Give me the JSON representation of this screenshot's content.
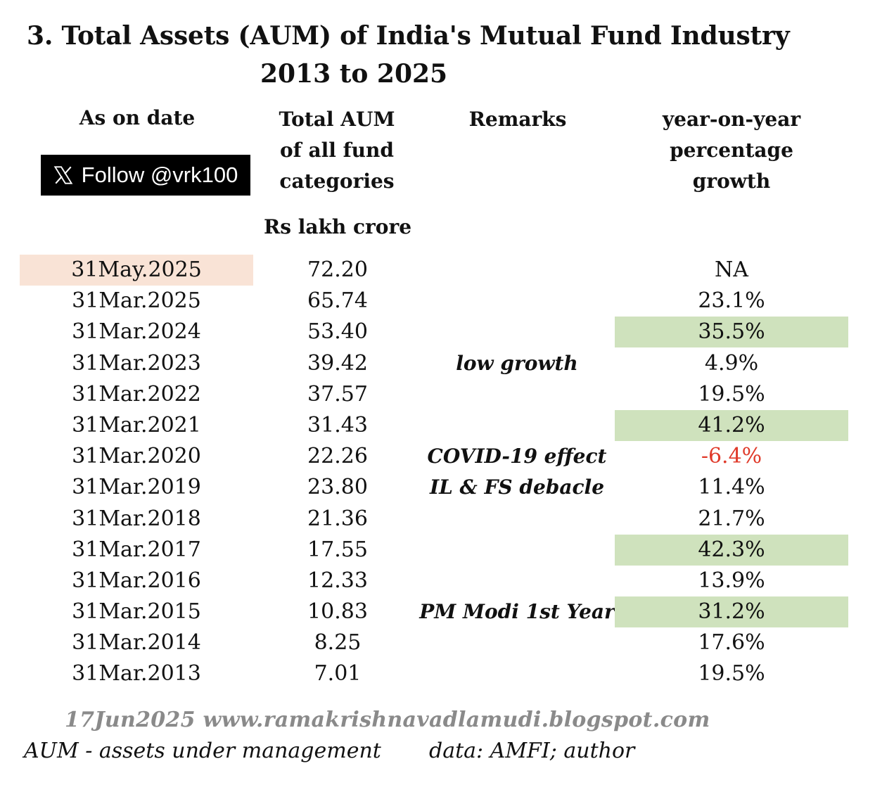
{
  "title": "3. Total Assets (AUM) of India's Mutual Fund Industry",
  "subtitle": "2013 to 2025",
  "headers": {
    "date": "As on date",
    "aum_lines": [
      "Total AUM",
      "of all fund",
      "categories"
    ],
    "remarks": "Remarks",
    "yoy_lines": [
      "year-on-year",
      "percentage",
      "growth"
    ],
    "units": "Rs lakh crore"
  },
  "follow_button": {
    "label": "Follow @vrk100",
    "icon": "x-logo-icon"
  },
  "rows": [
    {
      "date": "31May.2025",
      "aum": "72.20",
      "remark": "",
      "yoy": "NA"
    },
    {
      "date": "31Mar.2025",
      "aum": "65.74",
      "remark": "",
      "yoy": "23.1%"
    },
    {
      "date": "31Mar.2024",
      "aum": "53.40",
      "remark": "",
      "yoy": "35.5%"
    },
    {
      "date": "31Mar.2023",
      "aum": "39.42",
      "remark": "low growth",
      "yoy": "4.9%"
    },
    {
      "date": "31Mar.2022",
      "aum": "37.57",
      "remark": "",
      "yoy": "19.5%"
    },
    {
      "date": "31Mar.2021",
      "aum": "31.43",
      "remark": "",
      "yoy": "41.2%"
    },
    {
      "date": "31Mar.2020",
      "aum": "22.26",
      "remark": "COVID-19 effect",
      "yoy": "-6.4%"
    },
    {
      "date": "31Mar.2019",
      "aum": "23.80",
      "remark": "IL & FS debacle",
      "yoy": "11.4%"
    },
    {
      "date": "31Mar.2018",
      "aum": "21.36",
      "remark": "",
      "yoy": "21.7%"
    },
    {
      "date": "31Mar.2017",
      "aum": "17.55",
      "remark": "",
      "yoy": "42.3%"
    },
    {
      "date": "31Mar.2016",
      "aum": "12.33",
      "remark": "",
      "yoy": "13.9%"
    },
    {
      "date": "31Mar.2015",
      "aum": "10.83",
      "remark": "PM Modi 1st Year",
      "yoy": "31.2%"
    },
    {
      "date": "31Mar.2014",
      "aum": "8.25",
      "remark": "",
      "yoy": "17.6%"
    },
    {
      "date": "31Mar.2013",
      "aum": "7.01",
      "remark": "",
      "yoy": "19.5%"
    }
  ],
  "colors": {
    "latest_date_highlight": "#f9e3d6",
    "high_growth_highlight": "#cfe2bd",
    "negative_growth": "#e03a2a",
    "footer_gray": "#8a8a8a"
  },
  "footer": {
    "date_site": "17Jun2025  www.ramakrishnavadlamudi.blogspot.com",
    "abbrev_note": "AUM - assets under management",
    "source_note": "data: AMFI; author"
  }
}
